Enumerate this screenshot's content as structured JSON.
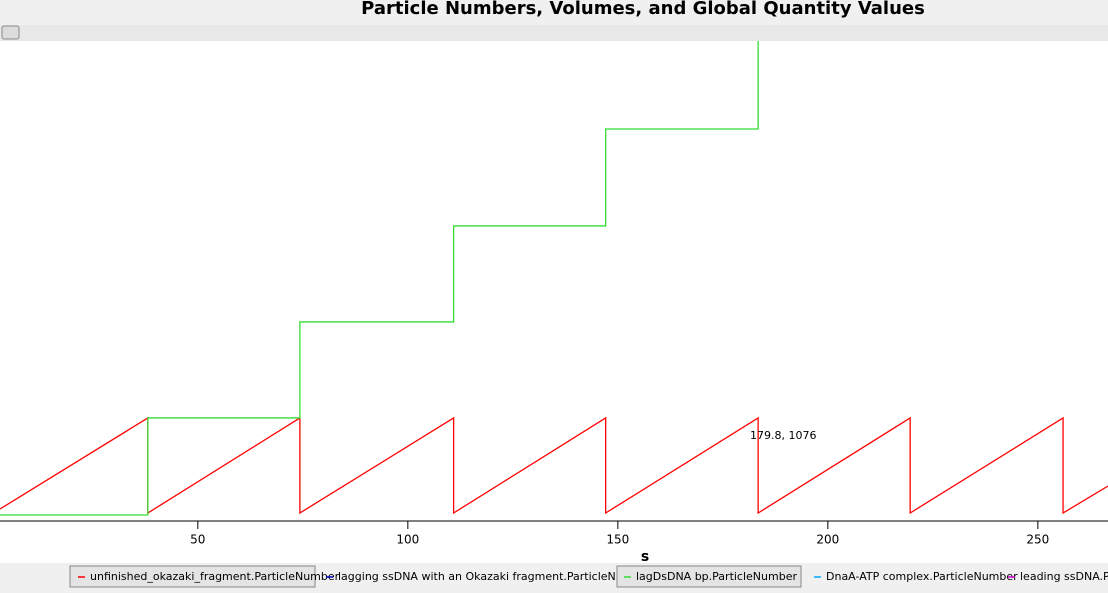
{
  "chart_data": {
    "type": "line",
    "title": "Particle Numbers, Volumes, and Global Quantity Values",
    "x_label": "s",
    "xlim": [
      2.9,
      266.7
    ],
    "ylim": [
      0,
      6000
    ],
    "xticks": [
      50,
      100,
      150,
      200,
      250
    ],
    "annotation": "179.8, 1076",
    "series": [
      {
        "name": "unfinished_okazaki_fragment.ParticleNumber",
        "color": "#ff0000",
        "x": [
          2.9,
          38.1,
          38.1,
          74.3,
          74.3,
          110.9,
          110.9,
          147.1,
          147.1,
          183.4,
          183.4,
          219.6,
          219.6,
          256.0,
          256.0,
          266.7
        ],
        "values": [
          150,
          1288,
          100,
          1288,
          100,
          1288,
          100,
          1288,
          100,
          1288,
          100,
          1288,
          100,
          1288,
          100,
          437
        ]
      },
      {
        "name": "lagging ssDNA with an Okazaki fragment.ParticleNumber",
        "color": "#0000c0",
        "x": [],
        "values": []
      },
      {
        "name": "lagDsDNA bp.ParticleNumber",
        "color": "#33dd33",
        "x": [
          2.9,
          38.1,
          38.1,
          74.3,
          74.3,
          110.9,
          110.9,
          147.1,
          147.1,
          183.4,
          183.4
        ],
        "values": [
          75,
          75,
          1288,
          1288,
          2488,
          2488,
          3688,
          3688,
          4900,
          4900,
          6000
        ]
      },
      {
        "name": "DnaA-ATP complex.ParticleNumber",
        "color": "#00aaff",
        "x": [],
        "values": []
      },
      {
        "name": "leading ssDNA.Par",
        "color": "#cc00cc",
        "x": [],
        "values": []
      }
    ]
  }
}
